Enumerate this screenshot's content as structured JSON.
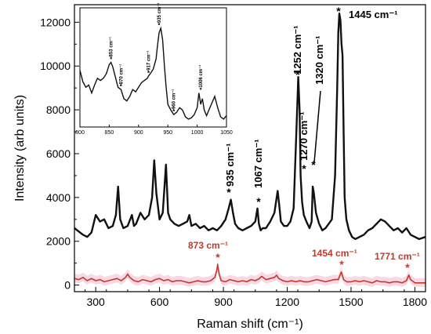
{
  "chart_data": [
    {
      "type": "line",
      "title": "",
      "xlabel": "Raman shift (cm⁻¹)",
      "ylabel": "Intensity (arb units)",
      "xlim": [
        200,
        1850
      ],
      "ylim": [
        -300,
        12800
      ],
      "xticks": [
        300,
        600,
        900,
        1200,
        1500,
        1800
      ],
      "yticks": [
        0,
        2000,
        4000,
        6000,
        8000,
        10000,
        12000
      ],
      "grid": false,
      "colors": {
        "black_series": "#111111",
        "red_series": "#c0392b",
        "red_band": "#f2b8cf"
      },
      "series": [
        {
          "color": "#111111",
          "x": [
            200,
            240,
            260,
            280,
            300,
            320,
            340,
            360,
            380,
            395,
            405,
            415,
            430,
            450,
            470,
            480,
            490,
            510,
            530,
            550,
            565,
            575,
            585,
            600,
            615,
            630,
            640,
            650,
            670,
            690,
            710,
            730,
            740,
            750,
            770,
            790,
            810,
            830,
            850,
            870,
            890,
            910,
            925,
            935,
            945,
            955,
            970,
            990,
            1010,
            1030,
            1050,
            1060,
            1067,
            1075,
            1085,
            1100,
            1120,
            1140,
            1155,
            1162,
            1170,
            1185,
            1200,
            1215,
            1230,
            1245,
            1252,
            1258,
            1263,
            1270,
            1278,
            1290,
            1305,
            1315,
            1320,
            1325,
            1335,
            1350,
            1365,
            1380,
            1395,
            1410,
            1425,
            1435,
            1440,
            1445,
            1450,
            1455,
            1460,
            1465,
            1470,
            1478,
            1490,
            1505,
            1520,
            1540,
            1560,
            1580,
            1600,
            1620,
            1640,
            1660,
            1680,
            1700,
            1720,
            1740,
            1760,
            1780,
            1800,
            1820,
            1850
          ],
          "y": [
            2600,
            2300,
            2200,
            2400,
            3200,
            2900,
            3000,
            2600,
            2700,
            3200,
            4500,
            3000,
            2600,
            2700,
            3200,
            2700,
            2800,
            3300,
            3000,
            3200,
            4000,
            5700,
            4200,
            3000,
            3300,
            5500,
            3300,
            3000,
            2800,
            2700,
            2800,
            2900,
            3200,
            2700,
            2800,
            2600,
            2700,
            2500,
            2600,
            2500,
            2700,
            3000,
            3500,
            3900,
            3300,
            2800,
            2600,
            2500,
            2600,
            2700,
            2900,
            3500,
            2800,
            2500,
            2600,
            2600,
            2900,
            3300,
            4300,
            3700,
            2900,
            2700,
            2700,
            2900,
            3500,
            7500,
            9500,
            8000,
            5000,
            3800,
            3200,
            2900,
            2600,
            2900,
            4500,
            4200,
            3300,
            2800,
            2500,
            2600,
            2800,
            3000,
            5000,
            9000,
            11500,
            12400,
            12100,
            11000,
            10500,
            7000,
            4000,
            3000,
            2500,
            2200,
            2100,
            2200,
            2300,
            2500,
            2600,
            2800,
            3000,
            2900,
            2700,
            2500,
            2600,
            2400,
            2600,
            2300,
            2200,
            2100,
            2200
          ]
        },
        {
          "color": "#c0392b",
          "x": [
            200,
            220,
            240,
            260,
            280,
            300,
            320,
            340,
            360,
            380,
            400,
            420,
            440,
            450,
            460,
            480,
            500,
            520,
            540,
            560,
            580,
            600,
            620,
            640,
            660,
            680,
            700,
            720,
            740,
            760,
            780,
            800,
            820,
            840,
            860,
            870,
            873,
            880,
            890,
            910,
            930,
            950,
            970,
            990,
            1010,
            1030,
            1050,
            1070,
            1080,
            1100,
            1120,
            1140,
            1150,
            1160,
            1180,
            1200,
            1220,
            1240,
            1260,
            1280,
            1300,
            1320,
            1340,
            1360,
            1380,
            1400,
            1420,
            1440,
            1454,
            1465,
            1480,
            1500,
            1520,
            1540,
            1560,
            1580,
            1600,
            1620,
            1640,
            1660,
            1680,
            1700,
            1720,
            1740,
            1760,
            1771,
            1780,
            1800,
            1820,
            1850
          ],
          "y": [
            300,
            250,
            350,
            200,
            300,
            200,
            250,
            150,
            200,
            250,
            300,
            200,
            350,
            500,
            350,
            200,
            150,
            250,
            200,
            150,
            250,
            300,
            200,
            250,
            150,
            200,
            200,
            150,
            100,
            150,
            200,
            150,
            150,
            200,
            350,
            700,
            950,
            500,
            200,
            150,
            250,
            200,
            150,
            200,
            150,
            250,
            200,
            300,
            400,
            250,
            300,
            350,
            450,
            300,
            200,
            150,
            200,
            150,
            200,
            150,
            150,
            200,
            250,
            200,
            150,
            200,
            250,
            250,
            600,
            250,
            150,
            150,
            200,
            150,
            200,
            150,
            100,
            200,
            150,
            150,
            100,
            150,
            150,
            100,
            200,
            450,
            250,
            100,
            100,
            100
          ]
        }
      ],
      "annotations": [
        {
          "text": "1445 cm⁻¹",
          "marker": "*"
        },
        {
          "text": "1252 cm⁻¹",
          "marker": "*"
        },
        {
          "text": "1320 cm⁻¹",
          "marker": "*"
        },
        {
          "text": "1270 cm⁻¹",
          "marker": "*"
        },
        {
          "text": "1067 cm⁻¹",
          "marker": "*"
        },
        {
          "text": "935 cm⁻¹",
          "marker": "*"
        },
        {
          "text": "873 cm⁻¹",
          "marker": "*",
          "color": "#c0392b"
        },
        {
          "text": "1454 cm⁻¹",
          "marker": "*",
          "color": "#c0392b"
        },
        {
          "text": "1771 cm⁻¹",
          "marker": "*",
          "color": "#c0392b"
        }
      ]
    },
    {
      "type": "line",
      "role": "inset",
      "xlim": [
        800,
        1050
      ],
      "ylim": [
        -0.05,
        1.0
      ],
      "xticks": [
        800,
        850,
        900,
        950,
        1000,
        1050
      ],
      "series": [
        {
          "color": "#111111",
          "x": [
            800,
            805,
            810,
            815,
            820,
            825,
            830,
            835,
            840,
            845,
            850,
            853,
            856,
            860,
            865,
            870,
            875,
            880,
            885,
            890,
            895,
            900,
            905,
            910,
            915,
            917,
            920,
            925,
            930,
            932,
            935,
            938,
            941,
            944,
            947,
            950,
            955,
            960,
            965,
            970,
            975,
            980,
            985,
            990,
            995,
            1000,
            1003,
            1006,
            1009,
            1012,
            1016,
            1020,
            1025,
            1030,
            1035,
            1040,
            1045,
            1050
          ],
          "y": [
            0.45,
            0.35,
            0.3,
            0.32,
            0.25,
            0.32,
            0.38,
            0.36,
            0.38,
            0.42,
            0.5,
            0.52,
            0.48,
            0.4,
            0.3,
            0.28,
            0.2,
            0.18,
            0.22,
            0.28,
            0.26,
            0.3,
            0.34,
            0.36,
            0.38,
            0.4,
            0.42,
            0.46,
            0.55,
            0.65,
            0.78,
            0.82,
            0.72,
            0.5,
            0.3,
            0.15,
            0.1,
            0.06,
            0.08,
            0.12,
            0.1,
            0.04,
            0.02,
            0.03,
            0.06,
            0.12,
            0.25,
            0.15,
            0.2,
            0.1,
            0.05,
            0.1,
            0.16,
            0.22,
            0.12,
            0.04,
            0.02,
            0.05
          ]
        }
      ],
      "annotations": [
        {
          "text": "853 cm⁻¹"
        },
        {
          "text": "870 cm⁻¹"
        },
        {
          "text": "917 cm⁻¹"
        },
        {
          "text": "935 cm⁻¹"
        },
        {
          "text": "960 cm⁻¹"
        },
        {
          "text": "1006 cm⁻¹"
        }
      ]
    }
  ]
}
